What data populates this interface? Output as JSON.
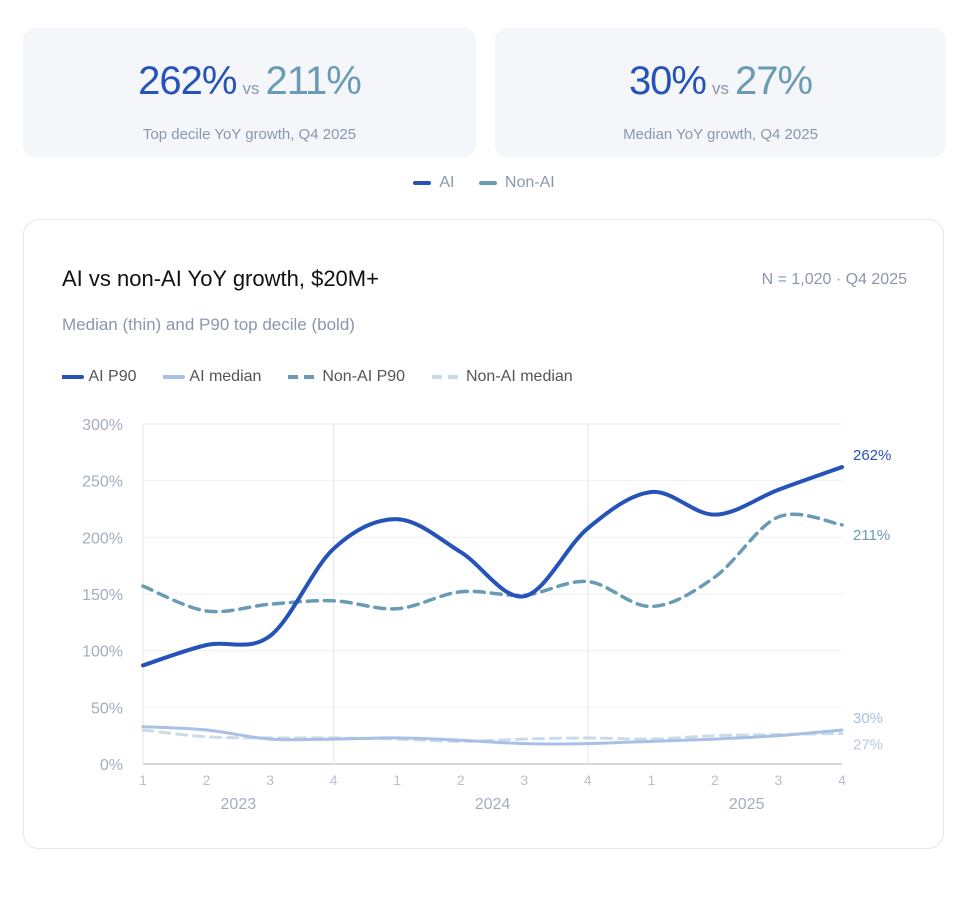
{
  "kpis": [
    {
      "ai": "262%",
      "vs": "vs",
      "non_ai": "211%",
      "label": "Top decile YoY growth, Q4 2025"
    },
    {
      "ai": "30%",
      "vs": "vs",
      "non_ai": "27%",
      "label": "Median YoY growth, Q4 2025"
    }
  ],
  "top_legend": [
    {
      "label": "AI",
      "color": "#2553b8"
    },
    {
      "label": "Non-AI",
      "color": "#6a9bb5"
    }
  ],
  "chart_data": {
    "type": "line",
    "title": "AI vs non-AI YoY growth, $20M+",
    "meta": "N = 1,020 · Q4 2025",
    "subtitle": "Median (thin) and P90 top decile (bold)",
    "x": [
      "1",
      "2",
      "3",
      "4",
      "1",
      "2",
      "3",
      "4",
      "1",
      "2",
      "3",
      "4"
    ],
    "years": [
      "2023",
      "2024",
      "2025"
    ],
    "ylim": [
      0,
      300
    ],
    "yticks": [
      "0%",
      "50%",
      "100%",
      "150%",
      "200%",
      "250%",
      "300%"
    ],
    "series": [
      {
        "name": "AI P90",
        "color": "#2553b8",
        "style": "solid",
        "width": 4,
        "values": [
          87,
          105,
          113,
          190,
          216,
          187,
          148,
          208,
          240,
          220,
          242,
          262
        ],
        "end_label": "262%"
      },
      {
        "name": "AI median",
        "color": "#a9c0e6",
        "style": "solid",
        "width": 3,
        "values": [
          33,
          30,
          22,
          22,
          23,
          21,
          18,
          18,
          20,
          22,
          25,
          30
        ],
        "end_label": "30%"
      },
      {
        "name": "Non-AI P90",
        "color": "#6a9bb5",
        "style": "dashed",
        "width": 3.5,
        "values": [
          157,
          135,
          141,
          144,
          137,
          152,
          149,
          161,
          139,
          165,
          218,
          211
        ],
        "end_label": "211%"
      },
      {
        "name": "Non-AI median",
        "color": "#c9dbe8",
        "style": "dashed",
        "width": 3,
        "values": [
          30,
          24,
          23,
          23,
          22,
          20,
          22,
          23,
          22,
          25,
          26,
          27
        ],
        "end_label": "27%"
      }
    ]
  }
}
